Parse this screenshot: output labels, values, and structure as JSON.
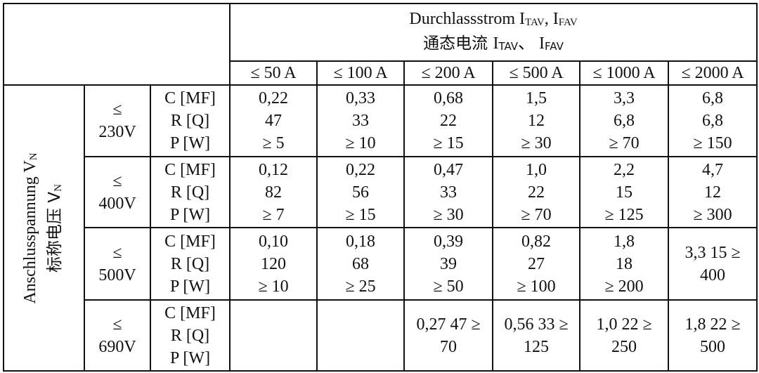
{
  "header": {
    "title_line1": "Durchlassstrom I",
    "title_sub1": "TAV",
    "title_sep1": ", I",
    "title_sub2": "FAV",
    "title_line2_cn": "通态电流 ",
    "title_line2_i1": "I",
    "title_line2_sub1": "TAV",
    "title_line2_sep": "、 I",
    "title_line2_sub2": "FAV",
    "currents": [
      "≤ 50 A",
      "≤ 100 A",
      "≤ 200 A",
      "≤ 500 A",
      "≤ 1000 A",
      "≤ 2000 A"
    ]
  },
  "side_label": {
    "de": "Anschlusspannung V",
    "de_sub": "N",
    "cn": "标称电压 V",
    "cn_sub": "N"
  },
  "param_labels": [
    "C [MF]",
    "R [Q]",
    "P [W]"
  ],
  "rows": [
    {
      "voltage_sym": "≤",
      "voltage": "230V",
      "cells": [
        [
          "0,22",
          "47",
          "≥ 5"
        ],
        [
          "0,33",
          "33",
          "≥ 10"
        ],
        [
          "0,68",
          "22",
          "≥ 15"
        ],
        [
          "1,5",
          "12",
          "≥ 30"
        ],
        [
          "3,3",
          "6,8",
          "≥ 70"
        ],
        [
          "6,8",
          "6,8",
          "≥ 150"
        ]
      ]
    },
    {
      "voltage_sym": "≤",
      "voltage": "400V",
      "cells": [
        [
          "0,12",
          "82",
          "≥ 7"
        ],
        [
          "0,22",
          "56",
          "≥ 15"
        ],
        [
          "0,47",
          "33",
          "≥ 30"
        ],
        [
          "1,0",
          "22",
          "≥ 70"
        ],
        [
          "2,2",
          "15",
          "≥ 125"
        ],
        [
          "4,7",
          "12",
          "≥ 300"
        ]
      ]
    },
    {
      "voltage_sym": "≤",
      "voltage": "500V",
      "cells": [
        [
          "0,10",
          "120",
          "≥ 10"
        ],
        [
          "0,18",
          "68",
          "≥ 25"
        ],
        [
          "0,39",
          "39",
          "≥ 50"
        ],
        [
          "0,82",
          "27",
          "≥ 100"
        ],
        [
          "1,8",
          "18",
          "≥ 200"
        ],
        [
          "3,3 15 ≥",
          "400"
        ]
      ]
    },
    {
      "voltage_sym": "≤",
      "voltage": "690V",
      "cells": [
        [],
        [],
        [
          "0,27 47 ≥",
          "70"
        ],
        [
          "0,56 33 ≥",
          "125"
        ],
        [
          "1,0 22 ≥",
          "250"
        ],
        [
          "1,8 22 ≥",
          "500"
        ]
      ]
    }
  ]
}
